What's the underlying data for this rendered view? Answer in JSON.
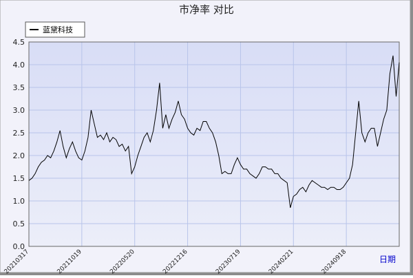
{
  "chart_data": {
    "type": "line",
    "title": "市净率  对比",
    "x_label": "日期",
    "categories": [
      "20210317",
      null,
      null,
      null,
      null,
      null,
      null,
      null,
      null,
      null,
      null,
      null,
      null,
      null,
      null,
      null,
      null,
      "20211019",
      null,
      null,
      null,
      null,
      null,
      null,
      null,
      null,
      null,
      null,
      null,
      null,
      null,
      null,
      null,
      null,
      "20220520",
      null,
      null,
      null,
      null,
      null,
      null,
      null,
      null,
      null,
      null,
      null,
      null,
      null,
      null,
      null,
      null,
      "20221216",
      null,
      null,
      null,
      null,
      null,
      null,
      null,
      null,
      null,
      null,
      null,
      null,
      null,
      null,
      null,
      null,
      "20230719",
      null,
      null,
      null,
      null,
      null,
      null,
      null,
      null,
      null,
      null,
      null,
      null,
      null,
      null,
      null,
      null,
      "20240221",
      null,
      null,
      null,
      null,
      null,
      null,
      null,
      null,
      null,
      null,
      null,
      null,
      null,
      null,
      null,
      null,
      "20240918",
      null,
      null,
      null,
      null,
      null,
      null,
      null,
      null,
      null,
      null,
      null,
      null,
      null,
      null,
      null,
      null,
      null
    ],
    "series": [
      {
        "name": "蓝黛科技",
        "color": "#000000",
        "values": [
          1.45,
          1.5,
          1.6,
          1.75,
          1.85,
          1.9,
          2.0,
          1.95,
          2.1,
          2.3,
          2.55,
          2.2,
          1.95,
          2.15,
          2.3,
          2.1,
          1.95,
          1.9,
          2.1,
          2.4,
          3.0,
          2.7,
          2.4,
          2.45,
          2.35,
          2.5,
          2.3,
          2.4,
          2.35,
          2.2,
          2.25,
          2.1,
          2.2,
          1.6,
          1.75,
          2.0,
          2.2,
          2.4,
          2.5,
          2.3,
          2.55,
          3.0,
          3.6,
          2.6,
          2.9,
          2.6,
          2.8,
          2.95,
          3.2,
          2.9,
          2.8,
          2.6,
          2.5,
          2.45,
          2.6,
          2.55,
          2.75,
          2.75,
          2.6,
          2.5,
          2.3,
          2.0,
          1.6,
          1.65,
          1.6,
          1.6,
          1.8,
          1.95,
          1.8,
          1.7,
          1.7,
          1.6,
          1.55,
          1.5,
          1.6,
          1.75,
          1.75,
          1.7,
          1.7,
          1.6,
          1.6,
          1.5,
          1.45,
          1.4,
          0.85,
          1.1,
          1.15,
          1.25,
          1.3,
          1.2,
          1.35,
          1.45,
          1.4,
          1.35,
          1.3,
          1.3,
          1.25,
          1.3,
          1.3,
          1.25,
          1.25,
          1.3,
          1.4,
          1.5,
          1.8,
          2.5,
          3.2,
          2.5,
          2.3,
          2.5,
          2.6,
          2.6,
          2.2,
          2.5,
          2.8,
          3.0,
          3.8,
          4.2,
          3.3,
          4.05
        ]
      }
    ],
    "ylim": [
      0,
      4.5
    ],
    "yticks": [
      {
        "value": 0,
        "label": "0.0"
      },
      0.5,
      {
        "value": 1,
        "label": "1.0"
      },
      1.5,
      {
        "value": 2,
        "label": "2.0"
      },
      2.5,
      {
        "value": 3,
        "label": "3.0"
      },
      3.5,
      {
        "value": 4,
        "label": "4.0"
      },
      4.5
    ],
    "grid": true,
    "legend": "top-left"
  }
}
